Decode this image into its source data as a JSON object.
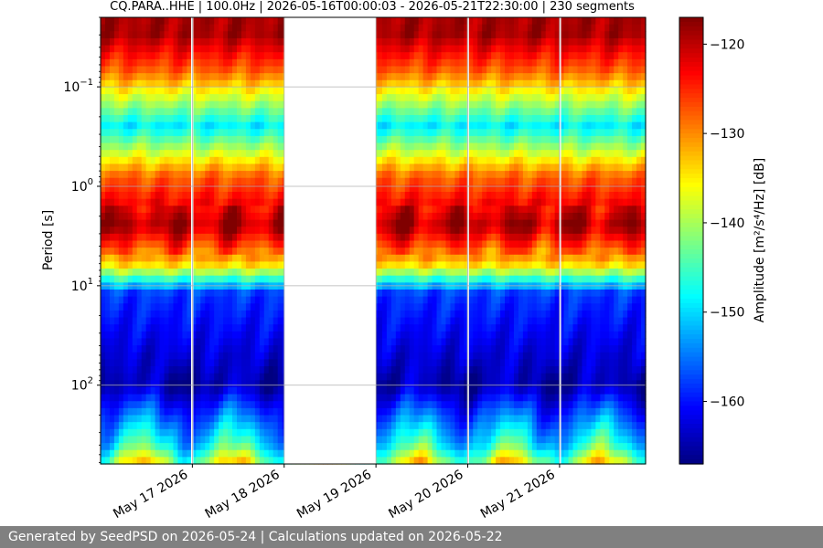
{
  "chart_data": {
    "type": "heatmap",
    "title": "CQ.PARA..HHE | 100.0Hz | 2026-05-16T00:00:03 - 2026-05-21T22:30:00 | 230 segments",
    "xlabel": "",
    "ylabel": "Period [s]",
    "x_range": [
      "2026-05-16T00:00:03",
      "2026-05-21T22:30:00"
    ],
    "x_ticks": [
      "May 17 2026",
      "May 18 2026",
      "May 19 2026",
      "May 20 2026",
      "May 21 2026"
    ],
    "y_scale": "log",
    "y_range": [
      0.02,
      620
    ],
    "y_ticks": [
      {
        "value": 0.1,
        "base": "10",
        "exp": "−1"
      },
      {
        "value": 1,
        "base": "10",
        "exp": "0"
      },
      {
        "value": 10,
        "base": "10",
        "exp": "1"
      },
      {
        "value": 100,
        "base": "10",
        "exp": "2"
      }
    ],
    "grid": true,
    "colorbar": {
      "label": "Amplitude [m²/s⁴/Hz] [dB]",
      "colormap": "jet",
      "range": [
        -167,
        -117
      ],
      "ticks": [
        -120,
        -130,
        -140,
        -150,
        -160
      ]
    },
    "data_gaps": [
      {
        "start": "2026-05-16T23:40:00",
        "end": "2026-05-17T00:15:00"
      },
      {
        "start": "2026-05-18T00:05:00",
        "end": "2026-05-19T00:05:00"
      },
      {
        "start": "2026-05-19T23:50:00",
        "end": "2026-05-20T00:10:00"
      },
      {
        "start": "2026-05-20T23:55:00",
        "end": "2026-05-21T00:05:00"
      }
    ],
    "band_profile_db": [
      {
        "period": 0.03,
        "db": -119
      },
      {
        "period": 0.07,
        "db": -128
      },
      {
        "period": 0.25,
        "db": -149
      },
      {
        "period": 0.8,
        "db": -128
      },
      {
        "period": 2.5,
        "db": -119
      },
      {
        "period": 6,
        "db": -133
      },
      {
        "period": 12,
        "db": -158
      },
      {
        "period": 100,
        "db": -165
      },
      {
        "period": 400,
        "db": -148
      },
      {
        "period": 620,
        "db": -138
      }
    ]
  },
  "footer": {
    "text": "Generated by SeedPSD on 2026-05-24 | Calculations updated on 2026-05-22"
  }
}
